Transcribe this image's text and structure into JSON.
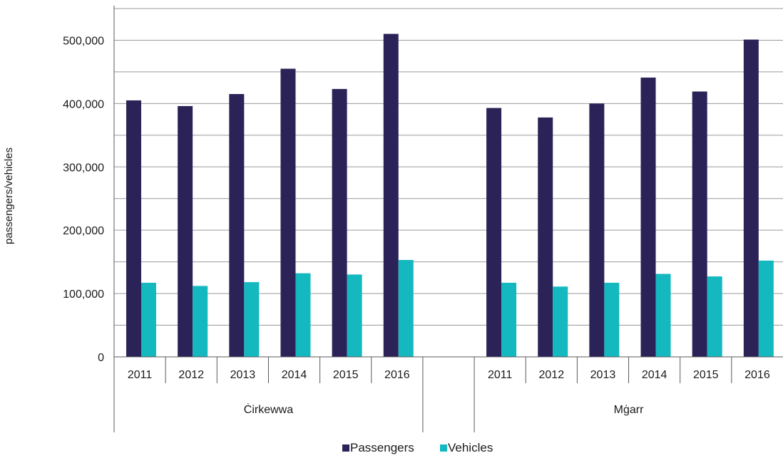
{
  "chart_data": {
    "type": "bar",
    "title": "",
    "ylabel": "passengers/vehicles",
    "xlabel": "",
    "ylim": [
      0,
      500000
    ],
    "yticks": [
      0,
      100000,
      200000,
      300000,
      400000,
      500000
    ],
    "ytick_labels": [
      "0",
      "100,000",
      "200,000",
      "300,000",
      "400,000",
      "500,000"
    ],
    "grid": true,
    "legend_position": "bottom",
    "groups": [
      {
        "label": "Ċirkewwa",
        "categories": [
          "2011",
          "2012",
          "2013",
          "2014",
          "2015",
          "2016"
        ],
        "series": [
          {
            "name": "Passengers",
            "values": [
              405000,
              396000,
              415000,
              455000,
              423000,
              510000
            ]
          },
          {
            "name": "Vehicles",
            "values": [
              117000,
              112000,
              118000,
              132000,
              130000,
              153000
            ]
          }
        ]
      },
      {
        "label": "Mġarr",
        "categories": [
          "2011",
          "2012",
          "2013",
          "2014",
          "2015",
          "2016"
        ],
        "series": [
          {
            "name": "Passengers",
            "values": [
              393000,
              378000,
              400000,
              441000,
              419000,
              501000
            ]
          },
          {
            "name": "Vehicles",
            "values": [
              117000,
              111000,
              117000,
              131000,
              127000,
              152000
            ]
          }
        ]
      }
    ],
    "colors": {
      "Passengers": "#2b2358",
      "Vehicles": "#14b8bf"
    }
  }
}
